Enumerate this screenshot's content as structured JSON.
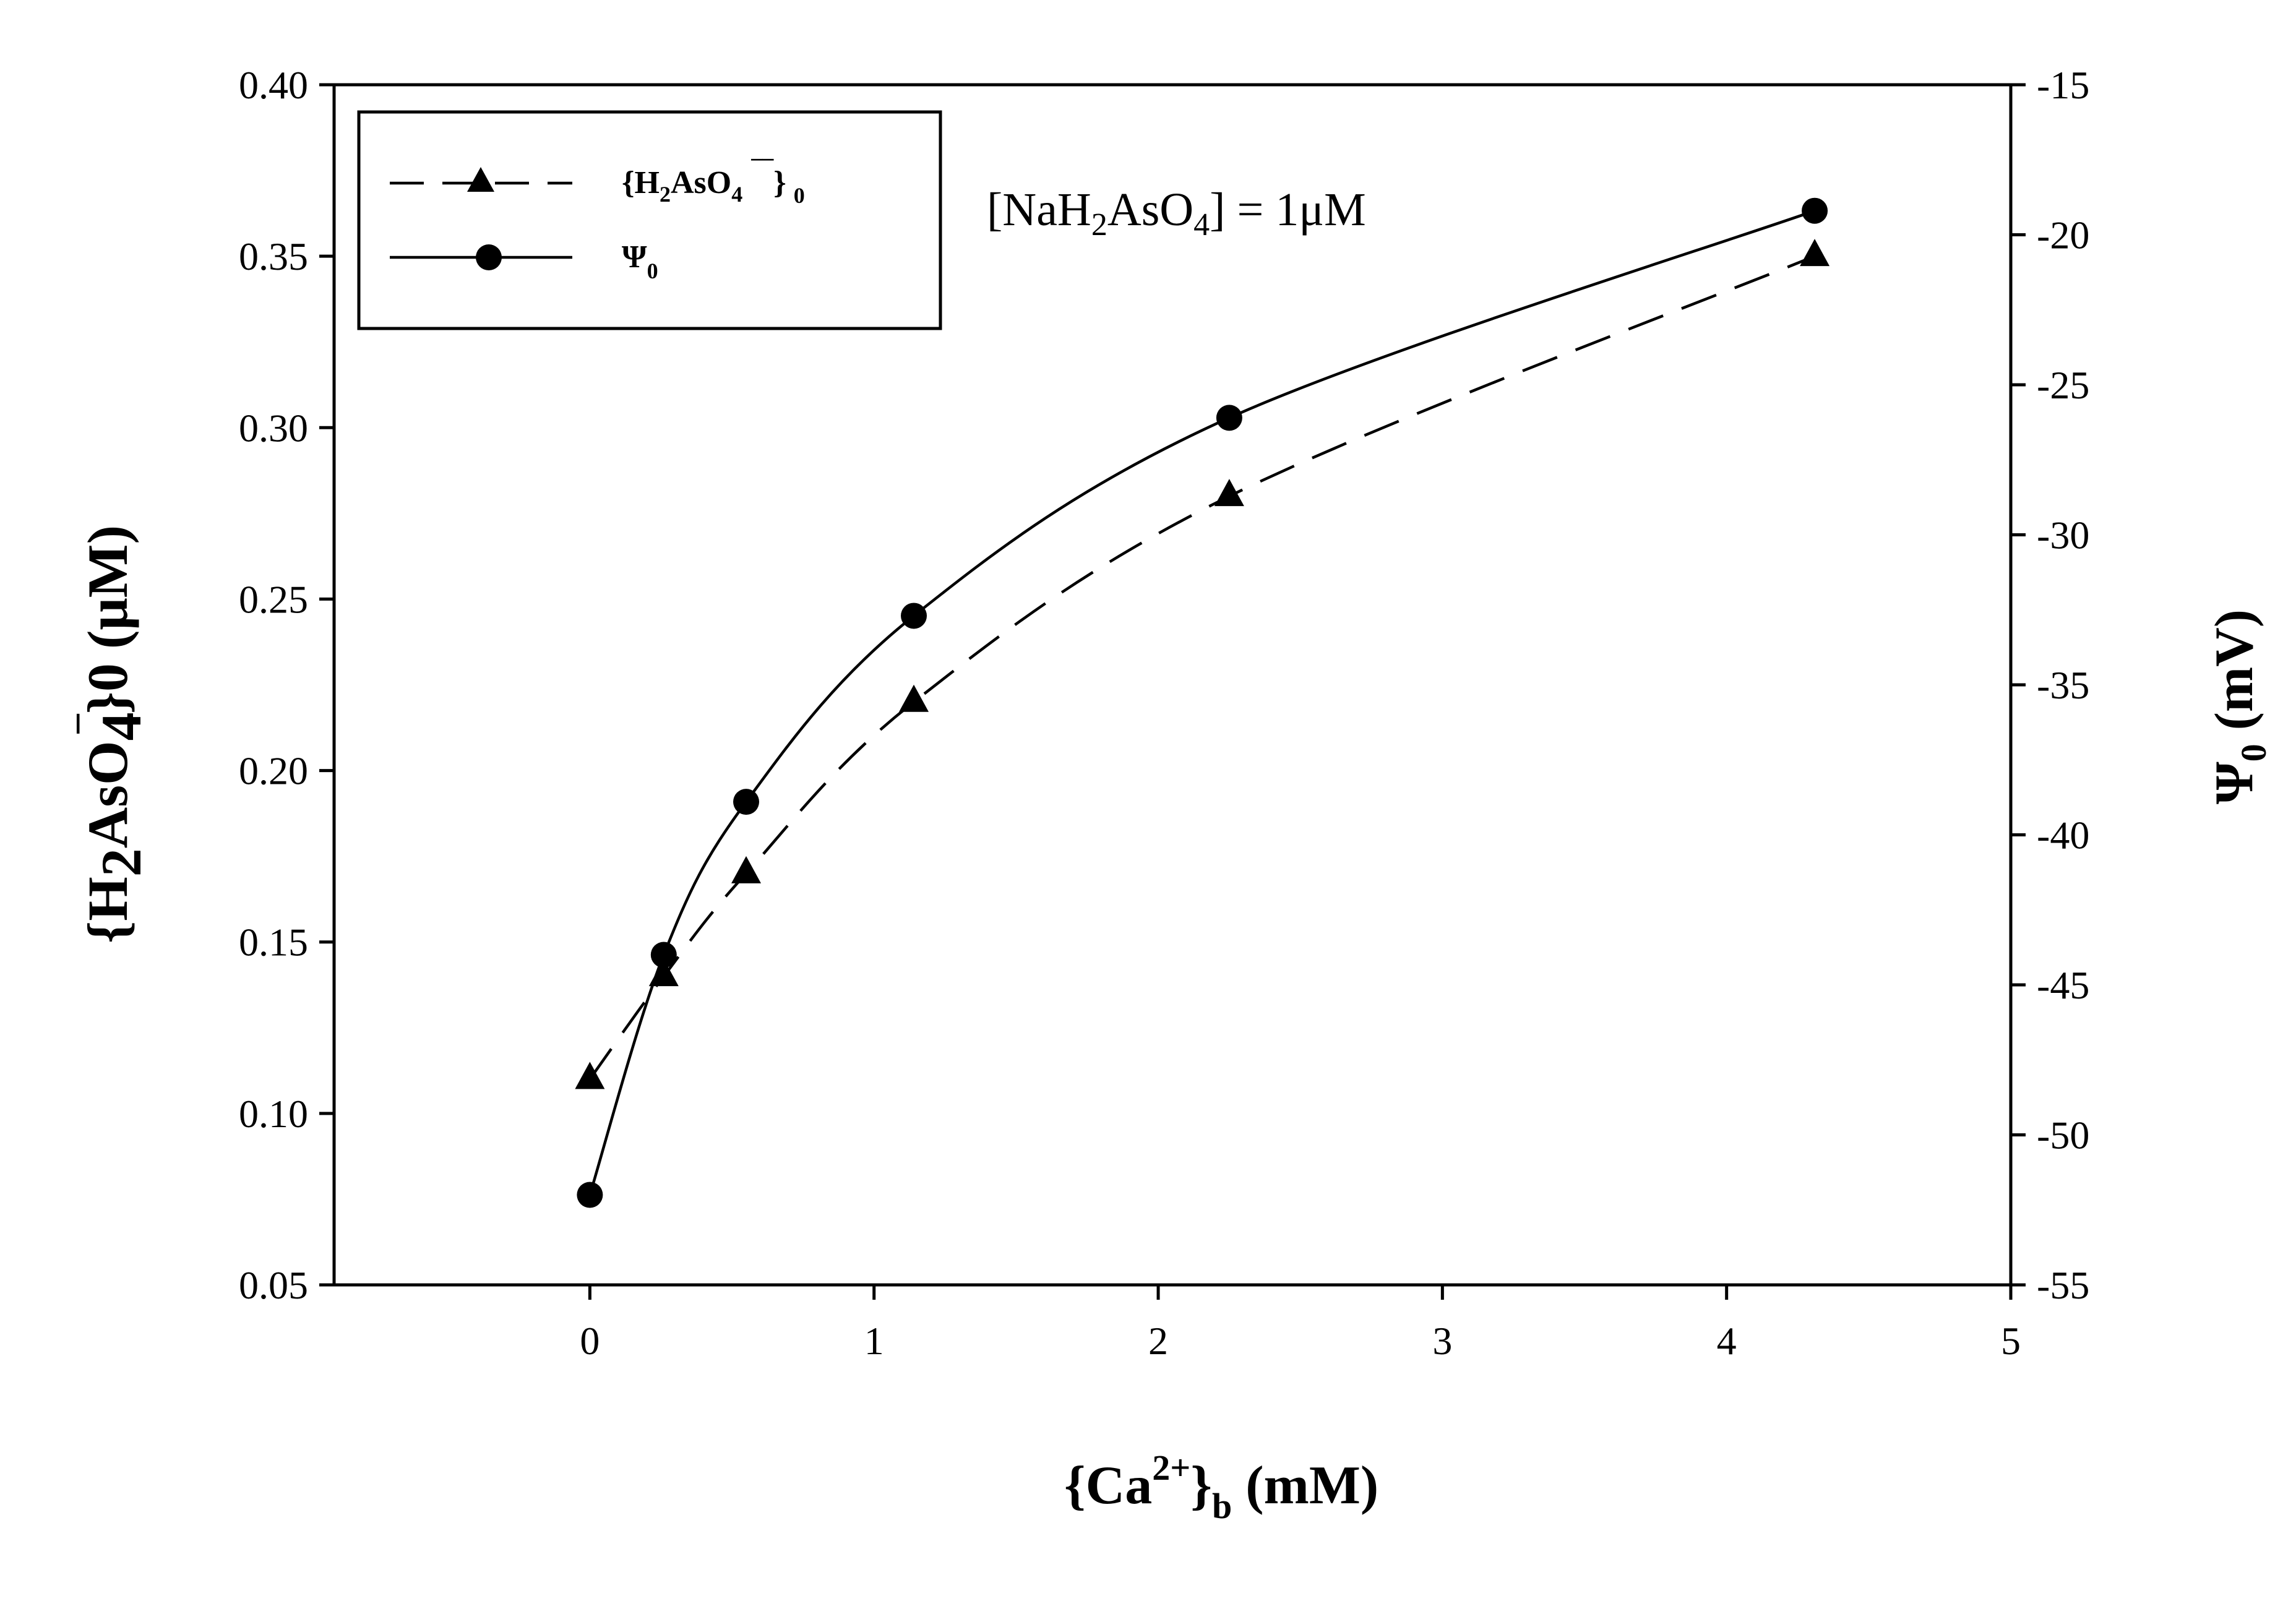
{
  "chart_data": {
    "type": "line",
    "annotation": {
      "pre": "[NaH",
      "sub1": "2",
      "mid": "AsO",
      "sub2": "4",
      "post": "] = 1μM"
    },
    "xlabel": {
      "pre": "{Ca",
      "sup": "2+",
      "mid": "}",
      "sub": "b",
      "post": " (mM)"
    },
    "ylabel_left": {
      "pre": "{H",
      "sub": "2",
      "mid": "AsO",
      "sub2": "4",
      "sup": "¯",
      "post": "}0 (μM)"
    },
    "ylabel_right": {
      "main": "Ψ",
      "sub": "0",
      "post": " (mV)"
    },
    "x": [
      0,
      0.26,
      0.55,
      1.14,
      2.25,
      4.31
    ],
    "xlim": [
      -0.9,
      5
    ],
    "xticks": [
      0,
      1,
      2,
      3,
      4,
      5
    ],
    "ylim_left": [
      0.05,
      0.4
    ],
    "yticks_left": [
      "0.05",
      "0.10",
      "0.15",
      "0.20",
      "0.25",
      "0.30",
      "0.35",
      "0.40"
    ],
    "ylim_right": [
      -55,
      -15
    ],
    "yticks_right": [
      "-55",
      "-50",
      "-45",
      "-40",
      "-35",
      "-30",
      "-25",
      "-20",
      "-15"
    ],
    "grid": false,
    "legend_placement": "top-left",
    "series": [
      {
        "name": "{H2AsO4¯}0",
        "legend": {
          "pre": "{H",
          "sub": "2",
          "mid": "AsO",
          "sub2": "4",
          "sup": "¯¯",
          "post": "}",
          "tail": "0"
        },
        "axis": "left",
        "marker": "triangle",
        "line_style": "dashed",
        "values": [
          0.11,
          0.14,
          0.17,
          0.22,
          0.28,
          0.35
        ]
      },
      {
        "name": "Ψ0",
        "legend": {
          "main": "Ψ",
          "sub": "0"
        },
        "axis": "right",
        "marker": "circle",
        "line_style": "solid",
        "values": [
          -52.0,
          -44.0,
          -38.9,
          -32.7,
          -26.1,
          -19.2
        ]
      }
    ]
  }
}
